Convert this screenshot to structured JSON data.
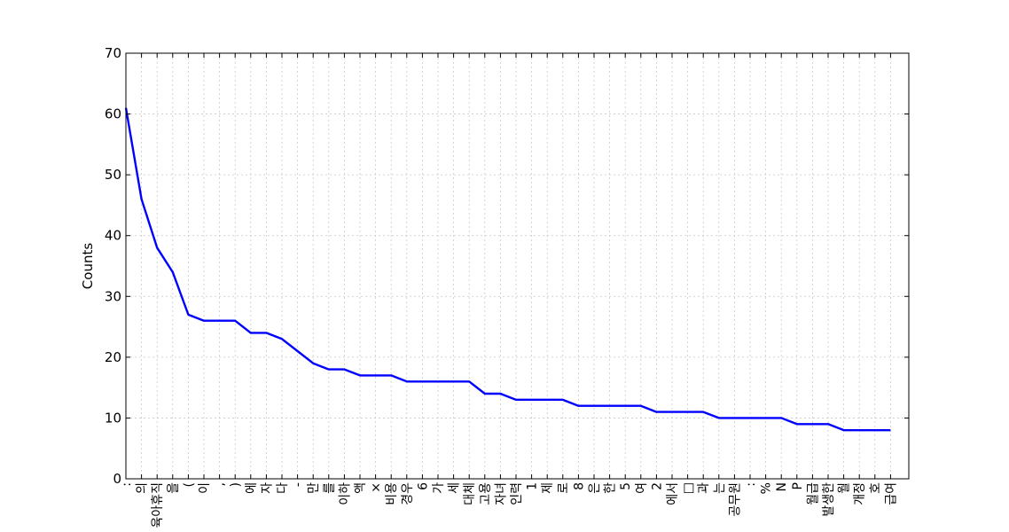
{
  "chart_data": {
    "type": "line",
    "title": "",
    "xlabel": "",
    "ylabel": "Counts",
    "ylim": [
      0,
      70
    ],
    "yticks": [
      0,
      10,
      20,
      30,
      40,
      50,
      60,
      70
    ],
    "grid": true,
    "line_color": "#0000ff",
    "categories": [
      ":",
      "의",
      "육아휴직",
      "을",
      "(",
      "이",
      ",",
      ")",
      "에",
      "자",
      "다",
      "-",
      "만",
      "를",
      "이하",
      "액",
      "×",
      "비용",
      "경우",
      "6",
      "가",
      "세",
      "대체",
      "고용",
      "자녀",
      "인력",
      "1",
      "제",
      "로",
      "8",
      "은",
      "한",
      "5",
      "여",
      "2",
      "에서",
      "□",
      "과",
      "는",
      "공무원",
      ":",
      "%",
      "N",
      "P",
      "월급",
      "발생한",
      "월",
      "개정",
      "호",
      "급여"
    ],
    "values": [
      61,
      46,
      38,
      34,
      27,
      26,
      26,
      26,
      24,
      24,
      23,
      21,
      19,
      18,
      18,
      17,
      17,
      17,
      16,
      16,
      16,
      16,
      16,
      14,
      14,
      13,
      13,
      13,
      13,
      12,
      12,
      12,
      12,
      12,
      11,
      11,
      11,
      11,
      10,
      10,
      10,
      10,
      10,
      9,
      9,
      9,
      8,
      8,
      8,
      8
    ]
  }
}
